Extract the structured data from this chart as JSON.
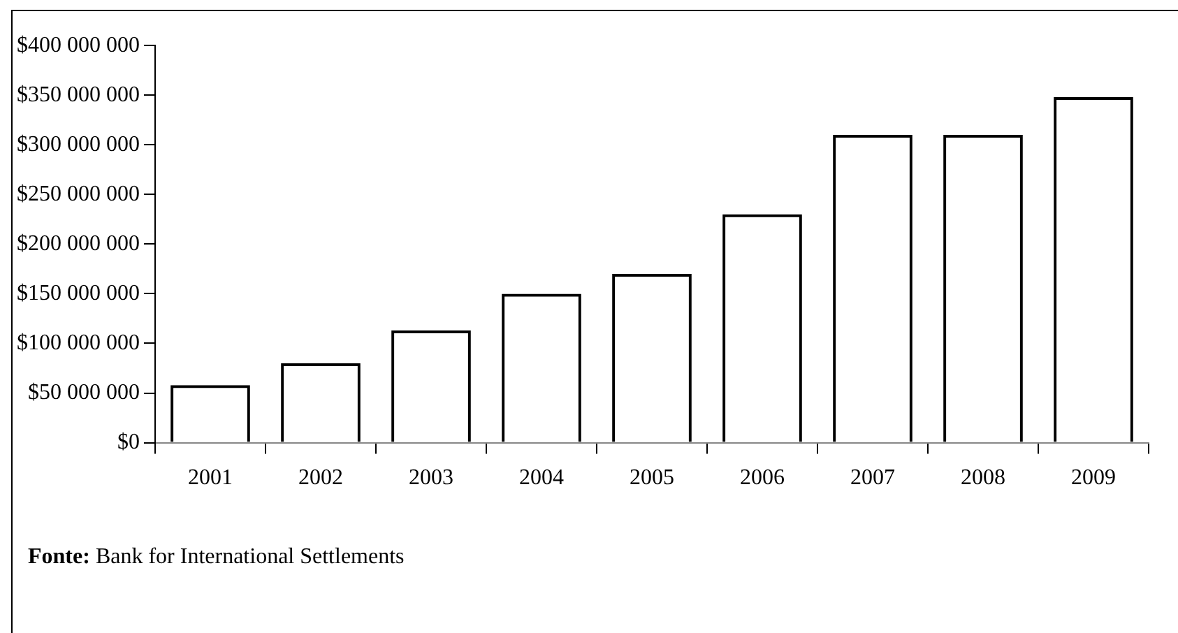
{
  "chart_data": {
    "type": "bar",
    "categories": [
      "2001",
      "2002",
      "2003",
      "2004",
      "2005",
      "2006",
      "2007",
      "2008",
      "2009"
    ],
    "values": [
      58000000,
      80000000,
      113000000,
      150000000,
      170000000,
      230000000,
      310000000,
      310000000,
      348000000
    ],
    "color": "#000000",
    "ylim": [
      0,
      400000000
    ],
    "yticks": [
      {
        "value": 0,
        "label": "$0"
      },
      {
        "value": 50000000,
        "label": "$50 000 000"
      },
      {
        "value": 100000000,
        "label": "$100 000 000"
      },
      {
        "value": 150000000,
        "label": "$150 000 000"
      },
      {
        "value": 200000000,
        "label": "$200 000 000"
      },
      {
        "value": 250000000,
        "label": "$250 000 000"
      },
      {
        "value": 300000000,
        "label": "$300 000 000"
      },
      {
        "value": 350000000,
        "label": "$350 000 000"
      },
      {
        "value": 400000000,
        "label": "$400 000 000"
      }
    ],
    "grid": false,
    "legend": false,
    "annotations": [
      "Fonte: Bank for International Settlements"
    ]
  }
}
